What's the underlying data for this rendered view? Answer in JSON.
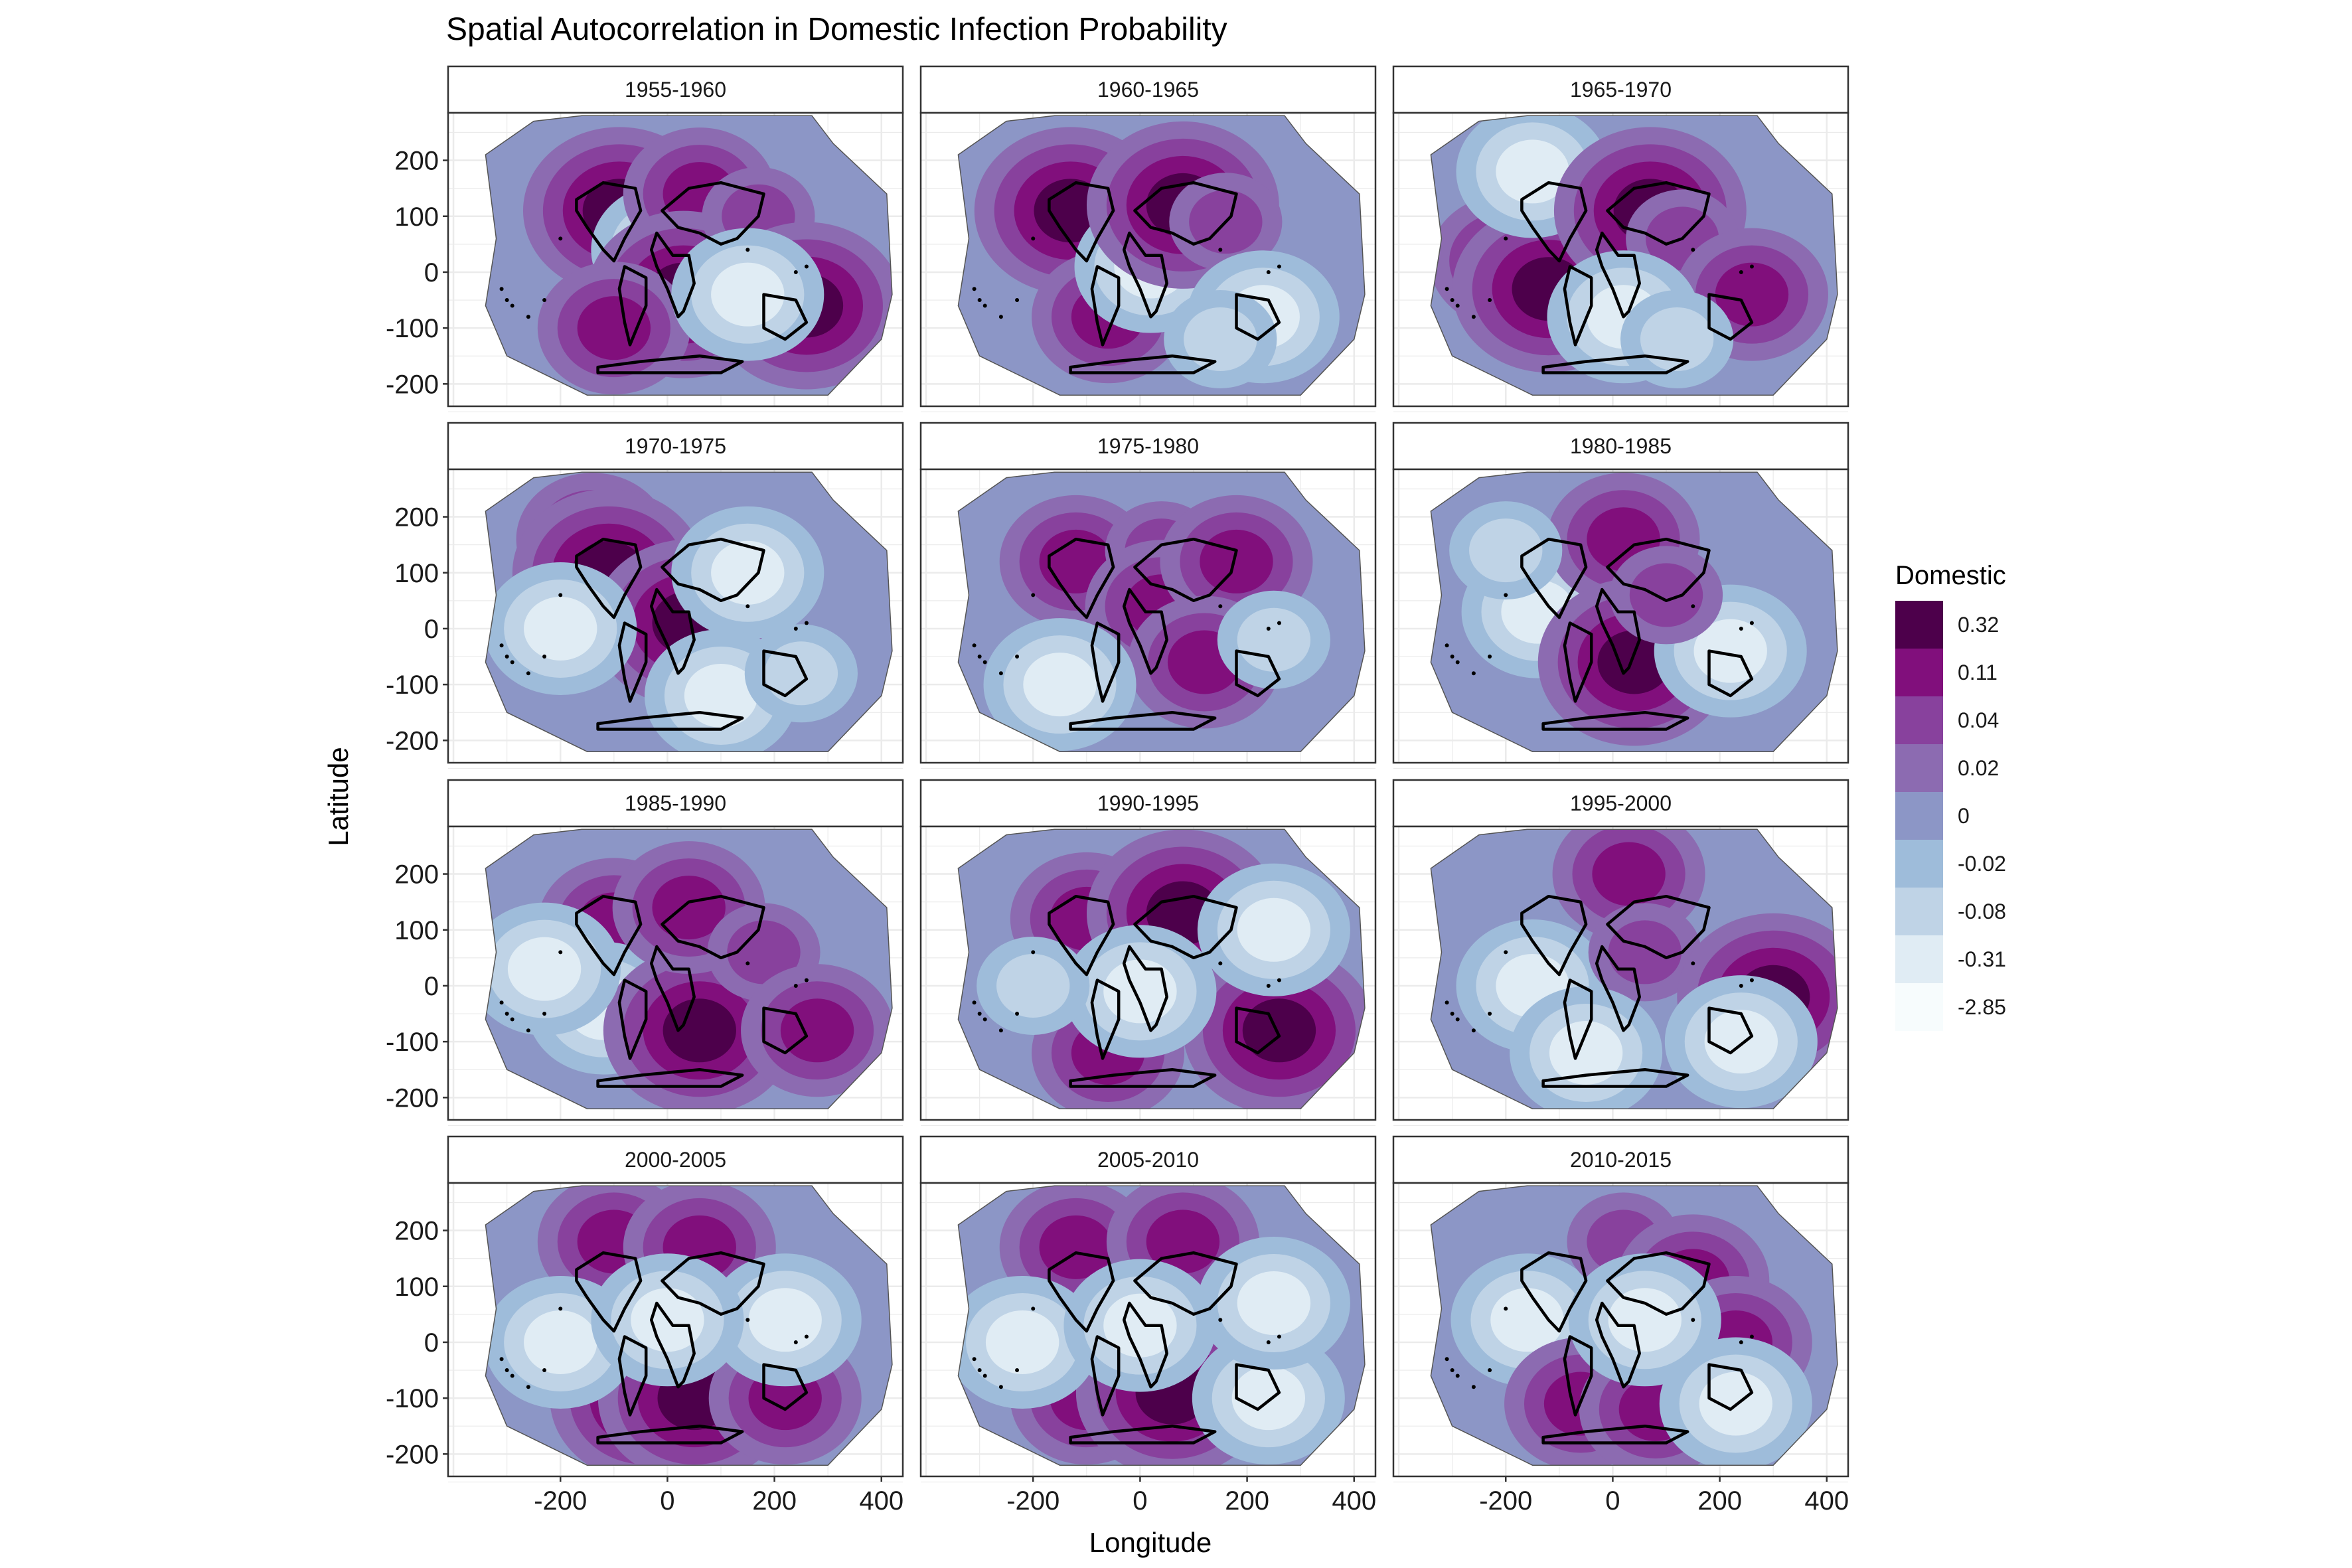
{
  "chart_data": {
    "type": "heatmap",
    "title": "Spatial Autocorrelation in Domestic Infection Probability",
    "xlabel": "Longitude",
    "ylabel": "Latitude",
    "xlim": [
      -410,
      440
    ],
    "ylim": [
      -240,
      285
    ],
    "x_ticks": [
      -200,
      0,
      200,
      400
    ],
    "x_tick_labels": [
      "-200",
      "0",
      "200",
      "400"
    ],
    "y_ticks": [
      200,
      100,
      0,
      -100,
      -200
    ],
    "y_tick_labels": [
      "200",
      "100",
      "0",
      "-100",
      "-200"
    ],
    "grid": true,
    "legend": {
      "title": "Domestic",
      "placement": "right",
      "levels": [
        "0.32",
        "0.11",
        "0.04",
        "0.02",
        "0",
        "-0.02",
        "-0.08",
        "-0.31",
        "-2.85"
      ],
      "colors": [
        "#4d004b",
        "#810f7c",
        "#88419d",
        "#8c6bb1",
        "#8c96c6",
        "#9ebcda",
        "#bfd3e6",
        "#e0ecf4",
        "#f7fcfd"
      ]
    },
    "panels": [
      {
        "period": "1955-1960",
        "hotspots": [
          [
            -90,
            110,
            0.32
          ],
          [
            0,
            40,
            -0.31
          ],
          [
            60,
            140,
            0.11
          ],
          [
            30,
            -40,
            0.32
          ],
          [
            170,
            100,
            0.04
          ],
          [
            260,
            -60,
            0.32
          ],
          [
            -100,
            -100,
            0.11
          ],
          [
            150,
            -40,
            -0.31
          ]
        ]
      },
      {
        "period": "1960-1965",
        "hotspots": [
          [
            -130,
            110,
            0.32
          ],
          [
            -60,
            -80,
            0.11
          ],
          [
            20,
            10,
            -0.31
          ],
          [
            80,
            120,
            0.32
          ],
          [
            160,
            90,
            0.04
          ],
          [
            230,
            -80,
            -0.31
          ],
          [
            150,
            -120,
            -0.08
          ]
        ]
      },
      {
        "period": "1965-1970",
        "hotspots": [
          [
            -200,
            20,
            0.11
          ],
          [
            -120,
            -30,
            0.32
          ],
          [
            -150,
            180,
            -0.31
          ],
          [
            70,
            110,
            0.32
          ],
          [
            130,
            60,
            0.04
          ],
          [
            260,
            -40,
            0.11
          ],
          [
            20,
            -80,
            -0.31
          ],
          [
            120,
            -120,
            -0.08
          ]
        ]
      },
      {
        "period": "1970-1975",
        "hotspots": [
          [
            -140,
            160,
            0.11
          ],
          [
            -110,
            100,
            0.32
          ],
          [
            40,
            10,
            0.32
          ],
          [
            150,
            100,
            -0.31
          ],
          [
            -200,
            0,
            -0.31
          ],
          [
            100,
            -120,
            -0.31
          ],
          [
            250,
            -80,
            -0.08
          ]
        ]
      },
      {
        "period": "1975-1980",
        "hotspots": [
          [
            -120,
            120,
            0.11
          ],
          [
            40,
            140,
            0.04
          ],
          [
            40,
            40,
            0.11
          ],
          [
            180,
            120,
            0.11
          ],
          [
            120,
            -60,
            0.11
          ],
          [
            -150,
            -100,
            -0.31
          ],
          [
            250,
            -20,
            -0.08
          ]
        ]
      },
      {
        "period": "1980-1985",
        "hotspots": [
          [
            -140,
            30,
            -0.31
          ],
          [
            20,
            160,
            0.11
          ],
          [
            40,
            -60,
            0.32
          ],
          [
            220,
            -40,
            -0.31
          ],
          [
            -200,
            140,
            -0.08
          ],
          [
            100,
            60,
            0.04
          ]
        ]
      },
      {
        "period": "1985-1990",
        "hotspots": [
          [
            -100,
            110,
            0.11
          ],
          [
            -120,
            -40,
            -0.31
          ],
          [
            60,
            -80,
            0.32
          ],
          [
            40,
            140,
            0.11
          ],
          [
            180,
            60,
            0.04
          ],
          [
            280,
            -80,
            0.11
          ],
          [
            -230,
            30,
            -0.31
          ]
        ]
      },
      {
        "period": "1990-1995",
        "hotspots": [
          [
            -100,
            120,
            0.11
          ],
          [
            80,
            130,
            0.32
          ],
          [
            -60,
            -120,
            0.11
          ],
          [
            260,
            -80,
            0.32
          ],
          [
            250,
            100,
            -0.31
          ],
          [
            0,
            -10,
            -0.31
          ],
          [
            -200,
            0,
            -0.08
          ]
        ]
      },
      {
        "period": "1995-2000",
        "hotspots": [
          [
            -150,
            0,
            -0.31
          ],
          [
            30,
            200,
            0.11
          ],
          [
            60,
            60,
            0.04
          ],
          [
            300,
            -20,
            0.32
          ],
          [
            240,
            -100,
            -0.31
          ],
          [
            -50,
            -120,
            -0.31
          ]
        ]
      },
      {
        "period": "2000-2005",
        "hotspots": [
          [
            -100,
            180,
            0.11
          ],
          [
            60,
            170,
            0.11
          ],
          [
            -40,
            -100,
            0.32
          ],
          [
            50,
            -100,
            0.32
          ],
          [
            220,
            -100,
            0.11
          ],
          [
            220,
            40,
            -0.31
          ],
          [
            -200,
            0,
            -0.31
          ],
          [
            0,
            40,
            -0.31
          ]
        ]
      },
      {
        "period": "2005-2010",
        "hotspots": [
          [
            -120,
            170,
            0.11
          ],
          [
            80,
            180,
            0.11
          ],
          [
            -100,
            -100,
            0.11
          ],
          [
            60,
            -90,
            0.32
          ],
          [
            240,
            -100,
            -0.31
          ],
          [
            250,
            70,
            -0.31
          ],
          [
            -220,
            0,
            -0.31
          ],
          [
            0,
            30,
            -0.31
          ]
        ]
      },
      {
        "period": "2010-2015",
        "hotspots": [
          [
            -160,
            40,
            -0.31
          ],
          [
            20,
            180,
            0.04
          ],
          [
            150,
            110,
            0.11
          ],
          [
            -60,
            -110,
            0.11
          ],
          [
            80,
            -120,
            0.11
          ],
          [
            230,
            0,
            0.11
          ],
          [
            230,
            -110,
            -0.31
          ],
          [
            60,
            40,
            -0.31
          ]
        ]
      }
    ]
  }
}
